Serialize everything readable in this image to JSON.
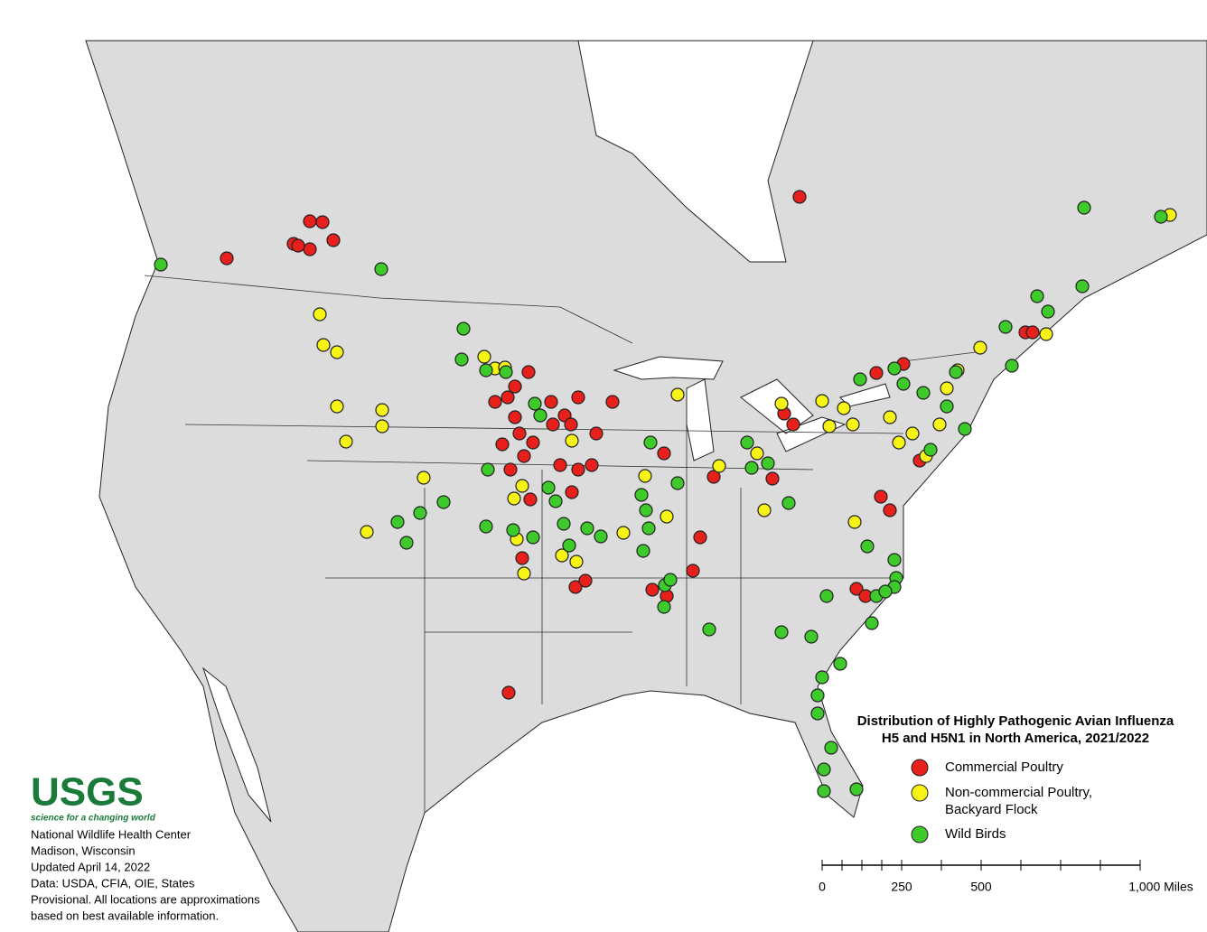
{
  "title": [
    "Distribution of Highly Pathogenic Avian Influenza",
    "H5 and H5N1 in North America, 2021/2022"
  ],
  "legend": [
    {
      "label": [
        "Commercial Poultry"
      ],
      "color": "#e8201c"
    },
    {
      "label": [
        "Non-commercial Poultry,",
        "Backyard Flock"
      ],
      "color": "#f7f416"
    },
    {
      "label": [
        "Wild Birds"
      ],
      "color": "#3dca2a"
    }
  ],
  "logo": {
    "mark": "USGS",
    "tagline": "science for a changing world"
  },
  "credits": [
    "National Wildlife Health Center",
    "Madison, Wisconsin",
    "Updated April 14, 2022",
    "Data: USDA, CFIA, OIE, States",
    "Provisional. All locations are approximations",
    "based on best available information."
  ],
  "scale": {
    "labels": [
      "0",
      "250",
      "500",
      "1,000 Miles"
    ]
  }
}
